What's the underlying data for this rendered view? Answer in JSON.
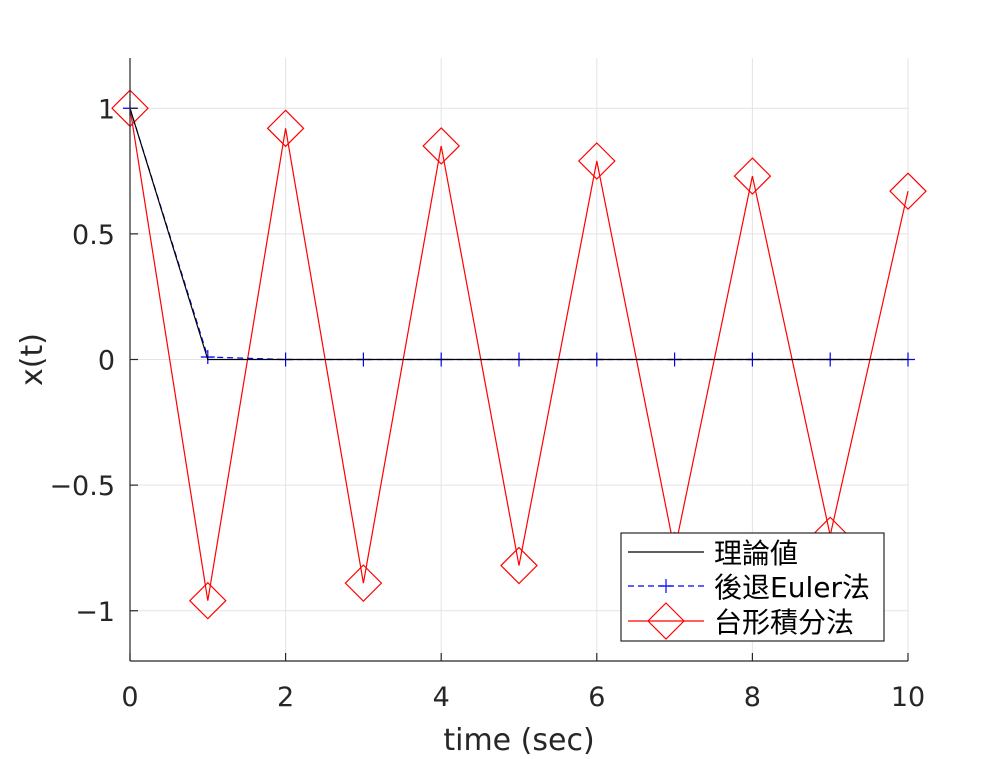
{
  "chart_data": {
    "type": "line",
    "title": "",
    "xlabel": "time (sec)",
    "ylabel": "x(t)",
    "xlim": [
      0,
      10
    ],
    "ylim": [
      -1.2,
      1.2
    ],
    "xticks": [
      0,
      2,
      4,
      6,
      8,
      10
    ],
    "xtick_labels": [
      "0",
      "2",
      "4",
      "6",
      "8",
      "10"
    ],
    "yticks": [
      -1,
      -0.5,
      0,
      0.5,
      1
    ],
    "ytick_labels": [
      "−1",
      "−0.5",
      "0",
      "0.5",
      "1"
    ],
    "grid": true,
    "legend_position": "bottom-right",
    "x": [
      0,
      1,
      2,
      3,
      4,
      5,
      6,
      7,
      8,
      9,
      10
    ],
    "series": [
      {
        "name": "理論値",
        "color": "#000000",
        "line_style": "solid",
        "marker": "none",
        "values": [
          1,
          0.0,
          0.0,
          0.0,
          0.0,
          0.0,
          0.0,
          0.0,
          0.0,
          0.0,
          0.0
        ]
      },
      {
        "name": "後退Euler法",
        "color": "#0000ff",
        "line_style": "dashed",
        "marker": "plus",
        "values": [
          1,
          0.01,
          0.0,
          0.0,
          0.0,
          0.0,
          0.0,
          0.0,
          0.0,
          0.0,
          0.0
        ]
      },
      {
        "name": "台形積分法",
        "color": "#ff0000",
        "line_style": "solid",
        "marker": "diamond",
        "values": [
          1,
          -0.96,
          0.92,
          -0.89,
          0.85,
          -0.82,
          0.79,
          -0.76,
          0.73,
          -0.7,
          0.67
        ]
      }
    ]
  }
}
